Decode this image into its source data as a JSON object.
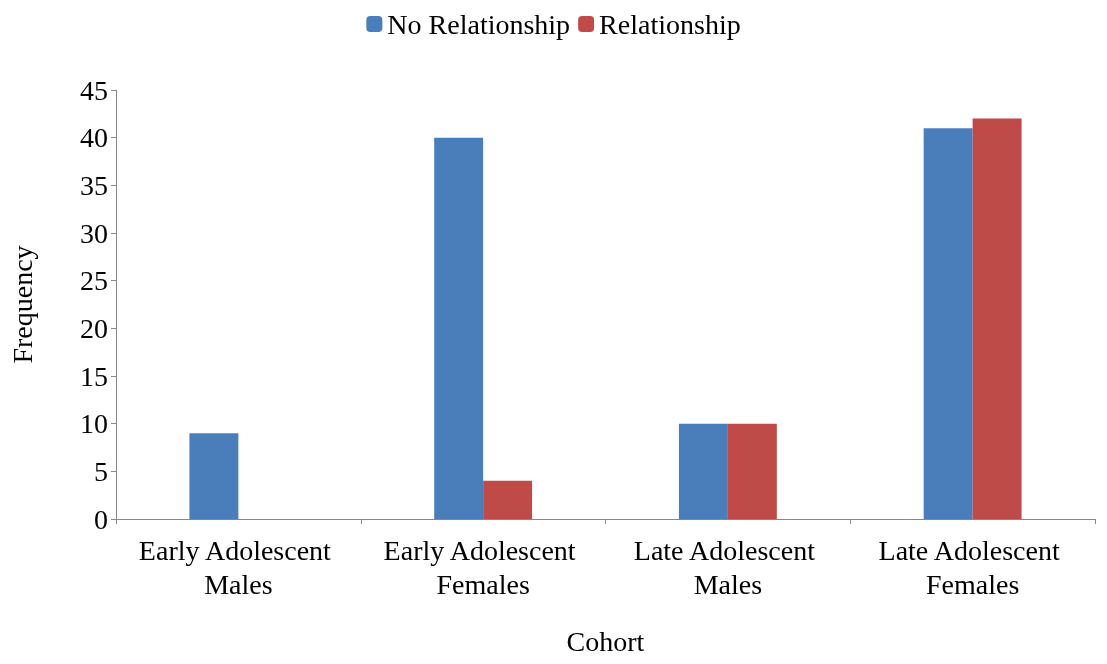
{
  "chart_data": {
    "type": "bar",
    "xlabel": "Cohort",
    "ylabel": "Frequency",
    "categories": [
      "Early Adolescent Males",
      "Early Adolescent Females",
      "Late Adolescent Males",
      "Late Adolescent Females"
    ],
    "series": [
      {
        "name": "No Relationship",
        "color": "#4a7ebb",
        "values": [
          9,
          40,
          10,
          41
        ]
      },
      {
        "name": "Relationship",
        "color": "#be4b48",
        "values": [
          0,
          4,
          10,
          42
        ]
      }
    ],
    "ylim": [
      0,
      45
    ],
    "yticks": [
      0,
      5,
      10,
      15,
      20,
      25,
      30,
      35,
      40,
      45
    ],
    "grid": false,
    "legend": "top"
  }
}
